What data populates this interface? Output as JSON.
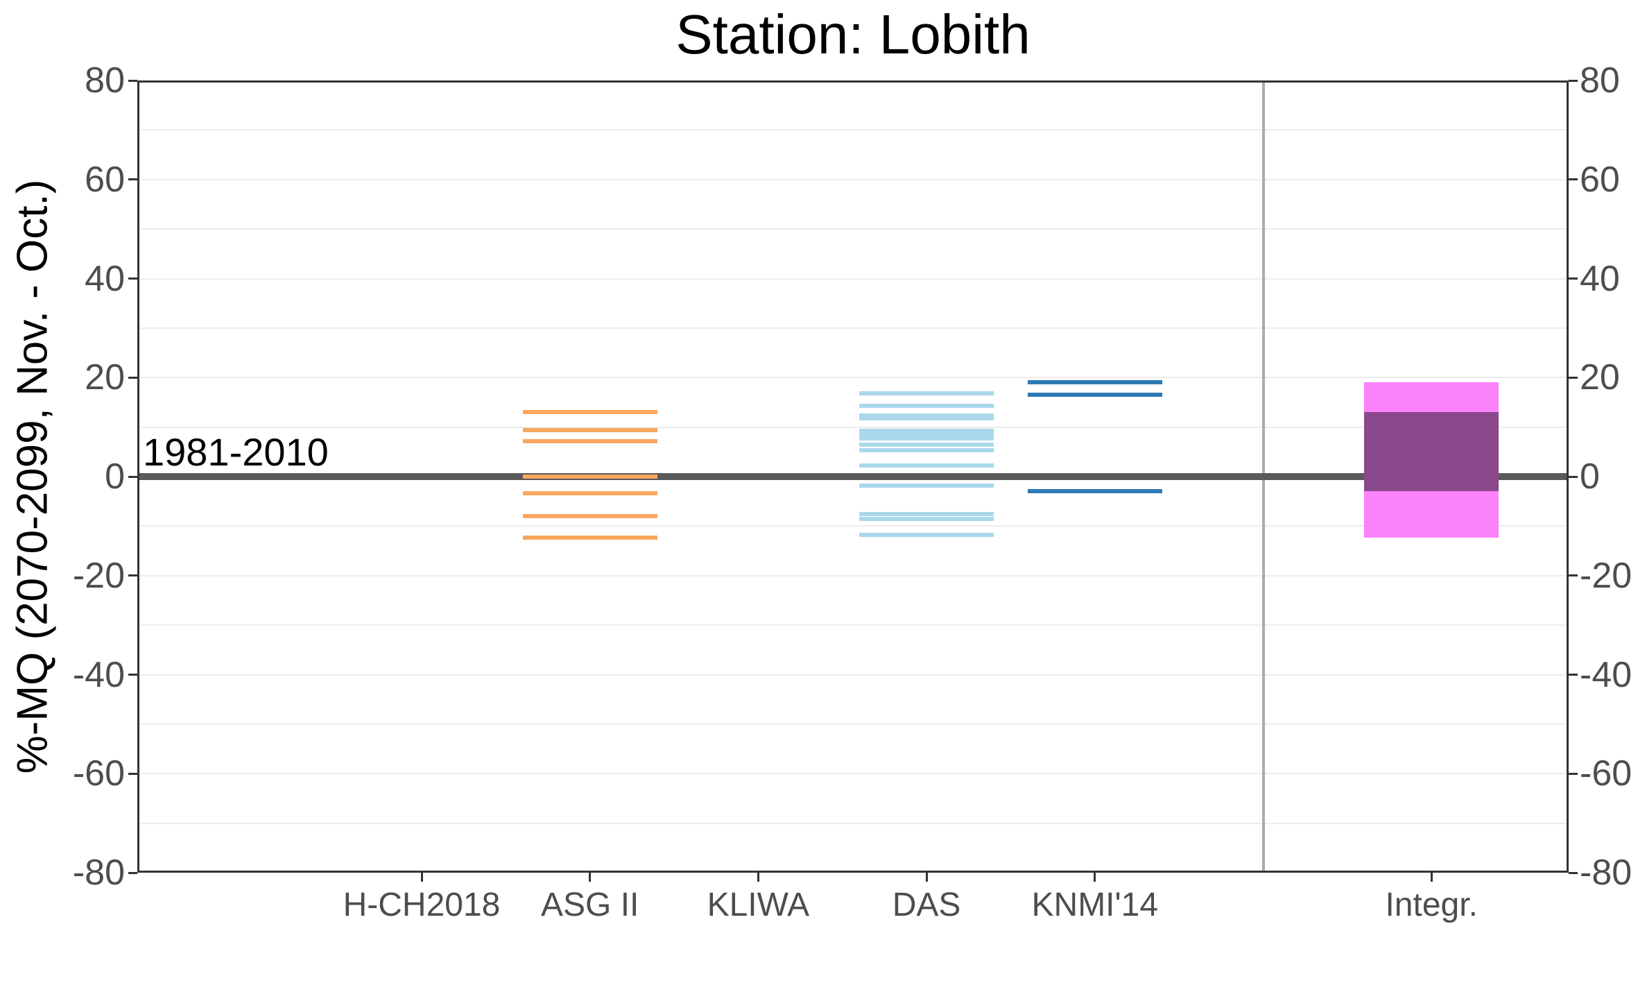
{
  "chart_data": {
    "type": "scatter",
    "marker_style": "horizontal-dash",
    "title": "Station: Lobith",
    "ylabel": "%-MQ (2070-2099, Nov. - Oct.)",
    "xlabel": "",
    "ylim": [
      -80,
      80
    ],
    "y_tick_labels": [
      "80",
      "60",
      "40",
      "20",
      "0",
      "-20",
      "-40",
      "-60",
      "-80"
    ],
    "gridline_step": 10,
    "grid_on": true,
    "legend_position": "none",
    "baseline": {
      "value": 0,
      "label": "1981-2010"
    },
    "categories": [
      "H-CH2018",
      "ASG II",
      "KLIWA",
      "DAS",
      "KNMI'14",
      "Integr."
    ],
    "series": [
      {
        "name": "H-CH2018",
        "color": "#F9A75F",
        "values": []
      },
      {
        "name": "ASG II",
        "color": "#F9A75F",
        "values": [
          13.0,
          9.4,
          7.1,
          0.0,
          -3.4,
          -8.0,
          -12.3
        ]
      },
      {
        "name": "KLIWA",
        "color": "#AAD8EA",
        "values": []
      },
      {
        "name": "DAS",
        "color": "#AAD8EA",
        "values": [
          16.8,
          14.3,
          12.4,
          11.8,
          9.3,
          8.5,
          7.7,
          6.5,
          5.4,
          2.3,
          -1.8,
          -7.5,
          -8.5,
          -11.8
        ]
      },
      {
        "name": "KNMI'14",
        "color": "#2D7AB4",
        "values": [
          19.0,
          16.5,
          -2.9
        ]
      },
      {
        "name": "Integr.",
        "type": "box",
        "outer": {
          "max": 19.0,
          "min": -12.3,
          "color": "#FC82FC"
        },
        "inner": {
          "max": 13.0,
          "min": -3.0,
          "color": "#8C488C"
        }
      }
    ],
    "separator": {
      "after_category": "KNMI'14",
      "color": "#ABABAB"
    },
    "colors": {
      "zero_line": "#5A5A5A",
      "gridline": "#EDEDED",
      "axis": "#333333",
      "tick_text": "#4D4D4D",
      "text": "#000000"
    }
  }
}
